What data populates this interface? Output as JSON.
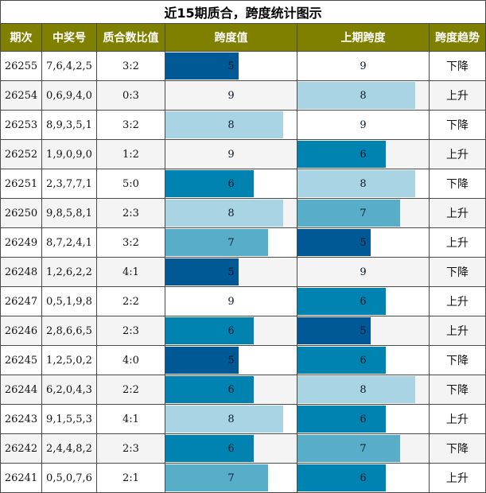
{
  "title": "近15期质合，跨度统计图示",
  "headers": [
    "期次",
    "中奖号",
    "质合数比值",
    "跨度值",
    "上期跨度",
    "跨度趋势"
  ],
  "colors": {
    "header_bg": "#808000",
    "span_5": "#005994",
    "span_6": "#0083b0",
    "span_7": "#58aec8",
    "span_8": "#a9d4e3",
    "span_9": "#ffffff"
  },
  "rows": [
    {
      "period": "26255",
      "numbers": "7,6,4,2,5",
      "ratio": "3:2",
      "span": "5",
      "prev_span": "9",
      "trend": "下降"
    },
    {
      "period": "26254",
      "numbers": "0,6,9,4,0",
      "ratio": "0:3",
      "span": "9",
      "prev_span": "8",
      "trend": "上升"
    },
    {
      "period": "26253",
      "numbers": "8,9,3,5,1",
      "ratio": "3:2",
      "span": "8",
      "prev_span": "9",
      "trend": "下降"
    },
    {
      "period": "26252",
      "numbers": "1,9,0,9,0",
      "ratio": "1:2",
      "span": "9",
      "prev_span": "6",
      "trend": "上升"
    },
    {
      "period": "26251",
      "numbers": "2,3,7,7,1",
      "ratio": "5:0",
      "span": "6",
      "prev_span": "8",
      "trend": "下降"
    },
    {
      "period": "26250",
      "numbers": "9,8,5,8,1",
      "ratio": "2:3",
      "span": "8",
      "prev_span": "7",
      "trend": "上升"
    },
    {
      "period": "26249",
      "numbers": "8,7,2,4,1",
      "ratio": "3:2",
      "span": "7",
      "prev_span": "5",
      "trend": "上升"
    },
    {
      "period": "26248",
      "numbers": "1,2,6,2,2",
      "ratio": "4:1",
      "span": "5",
      "prev_span": "9",
      "trend": "下降"
    },
    {
      "period": "26247",
      "numbers": "0,5,1,9,8",
      "ratio": "2:2",
      "span": "9",
      "prev_span": "6",
      "trend": "上升"
    },
    {
      "period": "26246",
      "numbers": "2,8,6,6,5",
      "ratio": "2:3",
      "span": "6",
      "prev_span": "5",
      "trend": "上升"
    },
    {
      "period": "26245",
      "numbers": "1,2,5,0,2",
      "ratio": "4:0",
      "span": "5",
      "prev_span": "6",
      "trend": "下降"
    },
    {
      "period": "26244",
      "numbers": "6,2,0,4,3",
      "ratio": "2:2",
      "span": "6",
      "prev_span": "8",
      "trend": "下降"
    },
    {
      "period": "26243",
      "numbers": "9,1,5,5,3",
      "ratio": "4:1",
      "span": "8",
      "prev_span": "6",
      "trend": "上升"
    },
    {
      "period": "26242",
      "numbers": "2,4,4,8,2",
      "ratio": "2:3",
      "span": "6",
      "prev_span": "7",
      "trend": "下降"
    },
    {
      "period": "26241",
      "numbers": "0,5,0,7,6",
      "ratio": "2:1",
      "span": "7",
      "prev_span": "6",
      "trend": "上升"
    }
  ]
}
